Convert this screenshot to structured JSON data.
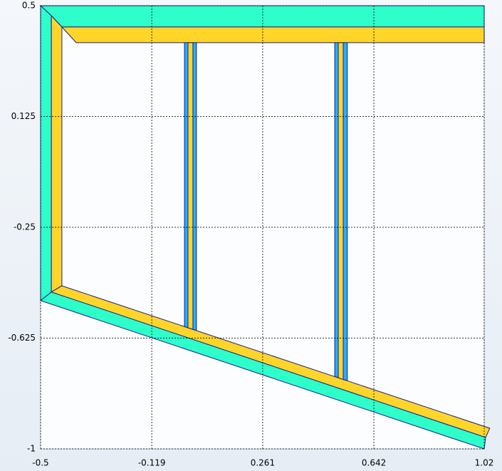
{
  "chart_data": {
    "type": "polygon",
    "xlim": [
      -0.5,
      1.02
    ],
    "ylim": [
      -1,
      0.5
    ],
    "xticks": [
      -0.5,
      -0.119,
      0.261,
      0.642,
      1.02
    ],
    "yticks": [
      0.5,
      0.125,
      -0.25,
      -0.625,
      -1
    ],
    "grid": true,
    "shapes": [
      {
        "color": "#2effca",
        "x": [
          -0.5,
          1.02,
          1.02,
          -0.427,
          -0.463
        ],
        "y": [
          0.5,
          0.5,
          0.428,
          0.428,
          0.466
        ]
      },
      {
        "color": "#2effca",
        "x": [
          -0.5,
          -0.463,
          -0.463,
          -0.5
        ],
        "y": [
          0.5,
          0.466,
          -0.469,
          -0.498
        ]
      },
      {
        "color": "#2effca",
        "x": [
          -0.463,
          1.025,
          1.02,
          -0.5
        ],
        "y": [
          -0.469,
          -0.961,
          -1.0,
          -0.498
        ]
      },
      {
        "color": "#ffd52a",
        "x": [
          -0.427,
          1.02,
          1.02,
          -0.378
        ],
        "y": [
          0.428,
          0.428,
          0.375,
          0.375
        ]
      },
      {
        "color": "#ffd52a",
        "x": [
          -0.463,
          -0.427,
          -0.427,
          -0.463
        ],
        "y": [
          0.466,
          0.428,
          -0.448,
          -0.469
        ]
      },
      {
        "color": "#ffd52a",
        "x": [
          -0.427,
          1.039,
          1.025,
          -0.463
        ],
        "y": [
          -0.448,
          -0.93,
          -0.961,
          -0.469
        ]
      },
      {
        "color": "#22b2ff",
        "x": [
          -0.007,
          0.034,
          0.034,
          -0.007
        ],
        "y": [
          0.375,
          0.375,
          -0.599,
          -0.586
        ]
      },
      {
        "color": "#ffd52a",
        "x": [
          0.005,
          0.022,
          0.022,
          0.005
        ],
        "y": [
          0.375,
          0.375,
          -0.595,
          -0.59
        ]
      },
      {
        "color": "#22b2ff",
        "x": [
          0.508,
          0.551,
          0.551,
          0.508
        ],
        "y": [
          0.375,
          0.375,
          -0.769,
          -0.755
        ]
      },
      {
        "color": "#ffd52a",
        "x": [
          0.52,
          0.537,
          0.537,
          0.52
        ],
        "y": [
          0.375,
          0.375,
          -0.765,
          -0.759
        ]
      }
    ]
  }
}
